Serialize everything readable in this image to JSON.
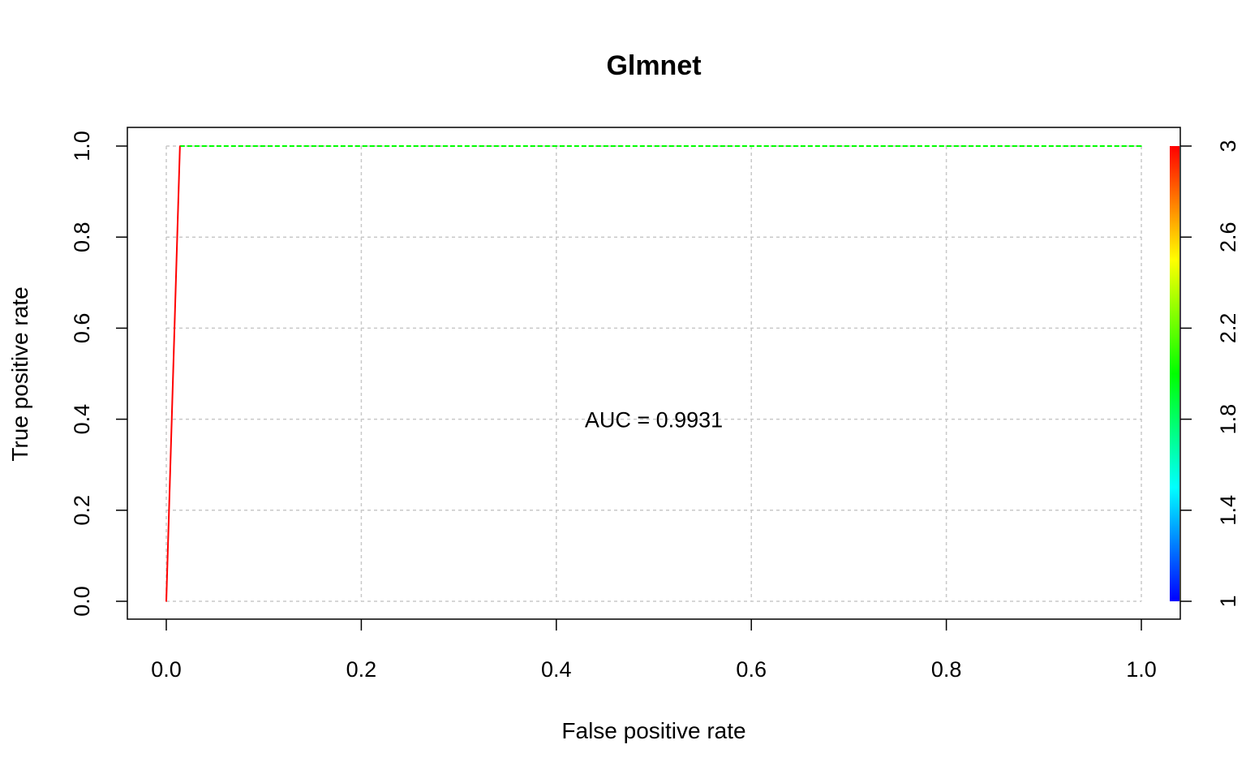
{
  "chart_data": {
    "type": "line",
    "title": "Glmnet",
    "xlabel": "False positive rate",
    "ylabel": "True positive rate",
    "xlim": [
      0,
      1
    ],
    "ylim": [
      0,
      1
    ],
    "x_ticks": [
      "0.0",
      "0.2",
      "0.4",
      "0.6",
      "0.8",
      "1.0"
    ],
    "y_ticks": [
      "0.0",
      "0.2",
      "0.4",
      "0.6",
      "0.8",
      "1.0"
    ],
    "grid": true,
    "series": [
      {
        "x": [
          0.0,
          0.014,
          1.0
        ],
        "y": [
          0.0,
          1.0,
          1.0
        ],
        "cutoffs": [
          3,
          3,
          2
        ]
      }
    ],
    "colorbar": {
      "range": [
        1,
        3
      ],
      "ticks": [
        "1",
        "1.4",
        "1.8",
        "2.2",
        "2.6",
        "3"
      ],
      "tick_values": [
        1,
        1.4,
        1.8,
        2.2,
        2.6,
        3
      ],
      "colors": [
        "#0000ff",
        "#00ffff",
        "#00ff00",
        "#ffff00",
        "#ff0000"
      ]
    },
    "annotation": {
      "text": "AUC =  0.9931",
      "x": 0.5,
      "y": 0.4
    }
  }
}
